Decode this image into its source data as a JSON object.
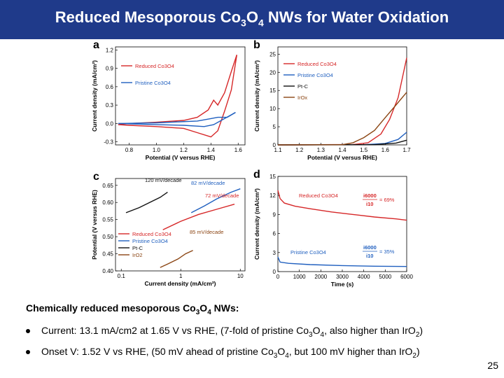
{
  "slide": {
    "title": {
      "pre": "Reduced Mesoporous Co",
      "sub1": "3",
      "mid": "O",
      "sub2": "4",
      "post": " NWs for Water Oxidation"
    },
    "caption": {
      "pre": "Chemically reduced mesoporous Co",
      "sub1": "3",
      "mid": "O",
      "sub2": "4",
      "post": " NWs:"
    },
    "bullets": [
      {
        "t1": "Current: 13.1 mA/cm2 at 1.65 V vs RHE, (7-fold of pristine Co",
        "s1": "3",
        "t2": "O",
        "s2": "4",
        "t3": ", also higher than IrO",
        "s3": "2",
        "t4": ")"
      },
      {
        "t1": "Onset V: 1.52 V vs RHE, (50 mV ahead of pristine Co",
        "s1": "3",
        "t2": "O",
        "s2": "4",
        "t3": ", but 100 mV higher than IrO",
        "s3": "2",
        "t4": ")"
      }
    ],
    "page_number": "25",
    "colors": {
      "title_bg": "#1f3a8a",
      "reduced": "#d62728",
      "pristine": "#1f5fbf",
      "ptc": "#111111",
      "irox": "#8b4513"
    }
  },
  "chart_data": [
    {
      "panel": "a",
      "type": "line",
      "xlabel": "Potential (V versus RHE)",
      "ylabel": "Current density (mA/cm²)",
      "xlim": [
        0.7,
        1.65
      ],
      "ylim": [
        -0.35,
        1.25
      ],
      "xticks": [
        "0.8",
        "1.0",
        "1.2",
        "1.4",
        "1.6"
      ],
      "yticks": [
        "-0.3",
        "0.0",
        "0.3",
        "0.6",
        "0.9",
        "1.2"
      ],
      "series": [
        {
          "name": "Reduced Co3O4",
          "color": "#d62728",
          "forward": [
            [
              0.72,
              -0.02
            ],
            [
              0.8,
              0.0
            ],
            [
              1.0,
              0.02
            ],
            [
              1.2,
              0.05
            ],
            [
              1.3,
              0.1
            ],
            [
              1.38,
              0.22
            ],
            [
              1.42,
              0.38
            ],
            [
              1.45,
              0.3
            ],
            [
              1.5,
              0.5
            ],
            [
              1.55,
              0.85
            ],
            [
              1.59,
              1.12
            ]
          ],
          "backward": [
            [
              1.59,
              1.12
            ],
            [
              1.55,
              0.55
            ],
            [
              1.5,
              0.2
            ],
            [
              1.45,
              -0.12
            ],
            [
              1.4,
              -0.22
            ],
            [
              1.3,
              -0.15
            ],
            [
              1.2,
              -0.08
            ],
            [
              1.0,
              -0.05
            ],
            [
              0.8,
              -0.03
            ],
            [
              0.72,
              -0.02
            ]
          ]
        },
        {
          "name": "Pristine Co3O4",
          "color": "#1f5fbf",
          "forward": [
            [
              0.72,
              0.0
            ],
            [
              1.0,
              0.01
            ],
            [
              1.3,
              0.04
            ],
            [
              1.4,
              0.08
            ],
            [
              1.45,
              0.1
            ],
            [
              1.52,
              0.1
            ],
            [
              1.58,
              0.18
            ]
          ],
          "backward": [
            [
              1.58,
              0.18
            ],
            [
              1.5,
              0.08
            ],
            [
              1.42,
              -0.02
            ],
            [
              1.35,
              -0.05
            ],
            [
              1.2,
              -0.03
            ],
            [
              1.0,
              -0.02
            ],
            [
              0.72,
              0.0
            ]
          ]
        }
      ]
    },
    {
      "panel": "b",
      "type": "line",
      "xlabel": "Potential (V versus RHE)",
      "ylabel": "Current density (mA/cm²)",
      "xlim": [
        1.1,
        1.7
      ],
      "ylim": [
        0,
        27
      ],
      "xticks": [
        "1.1",
        "1.2",
        "1.3",
        "1.4",
        "1.5",
        "1.6",
        "1.7"
      ],
      "yticks": [
        "0",
        "5",
        "10",
        "15",
        "20",
        "25"
      ],
      "series": [
        {
          "name": "Reduced Co3O4",
          "color": "#d62728",
          "points": [
            [
              1.1,
              0
            ],
            [
              1.45,
              0.1
            ],
            [
              1.52,
              0.6
            ],
            [
              1.58,
              3
            ],
            [
              1.62,
              7
            ],
            [
              1.66,
              13
            ],
            [
              1.7,
              24
            ]
          ]
        },
        {
          "name": "Pristine Co3O4",
          "color": "#1f5fbf",
          "points": [
            [
              1.1,
              0
            ],
            [
              1.5,
              0.05
            ],
            [
              1.6,
              0.4
            ],
            [
              1.66,
              1.5
            ],
            [
              1.7,
              3.5
            ]
          ]
        },
        {
          "name": "Pt-C",
          "color": "#111111",
          "points": [
            [
              1.1,
              0
            ],
            [
              1.55,
              0.05
            ],
            [
              1.65,
              0.5
            ],
            [
              1.7,
              1.3
            ]
          ]
        },
        {
          "name": "IrOx",
          "color": "#8b4513",
          "points": [
            [
              1.1,
              0
            ],
            [
              1.4,
              0.05
            ],
            [
              1.45,
              0.6
            ],
            [
              1.5,
              2
            ],
            [
              1.55,
              4
            ],
            [
              1.6,
              7.5
            ],
            [
              1.65,
              11
            ],
            [
              1.7,
              14.5
            ]
          ]
        }
      ]
    },
    {
      "panel": "c",
      "type": "line",
      "xlabel": "Current density (mA/cm²)",
      "ylabel": "Potential (V versus RHE)",
      "xscale": "log",
      "xlim": [
        0.08,
        12
      ],
      "ylim": [
        0.4,
        0.67
      ],
      "xticks": [
        "0.1",
        "1",
        "10"
      ],
      "yticks": [
        "0.40",
        "0.45",
        "0.50",
        "0.55",
        "0.60",
        "0.65"
      ],
      "annotations": [
        "120 mV/decade",
        "82 mV/decade",
        "72 mV/decade",
        "85 mV/decade"
      ],
      "series": [
        {
          "name": "Reduced Co3O4",
          "color": "#d62728",
          "points": [
            [
              0.5,
              0.52
            ],
            [
              1,
              0.545
            ],
            [
              2,
              0.565
            ],
            [
              4,
              0.58
            ],
            [
              8,
              0.595
            ]
          ]
        },
        {
          "name": "Pristine Co3O4",
          "color": "#1f5fbf",
          "points": [
            [
              1.5,
              0.57
            ],
            [
              2.5,
              0.59
            ],
            [
              4,
              0.61
            ],
            [
              7,
              0.63
            ],
            [
              10,
              0.64
            ]
          ]
        },
        {
          "name": "Pt-C",
          "color": "#111111",
          "points": [
            [
              0.12,
              0.57
            ],
            [
              0.2,
              0.585
            ],
            [
              0.3,
              0.6
            ],
            [
              0.45,
              0.615
            ],
            [
              0.6,
              0.63
            ]
          ]
        },
        {
          "name": "IrO2",
          "color": "#8b4513",
          "points": [
            [
              0.45,
              0.41
            ],
            [
              0.6,
              0.42
            ],
            [
              0.9,
              0.435
            ],
            [
              1.2,
              0.45
            ],
            [
              1.6,
              0.46
            ]
          ]
        }
      ]
    },
    {
      "panel": "d",
      "type": "line",
      "xlabel": "Time (s)",
      "ylabel": "Current density (mA/cm²)",
      "xlim": [
        0,
        6000
      ],
      "ylim": [
        0,
        15
      ],
      "xticks": [
        "0",
        "1000",
        "2000",
        "3000",
        "4000",
        "5000",
        "6000"
      ],
      "yticks": [
        "0",
        "3",
        "6",
        "9",
        "12",
        "15"
      ],
      "annotations": {
        "top": {
          "num": "i6000",
          "den": "i10",
          "value": "= 69%"
        },
        "bottom": {
          "num": "i6000",
          "den": "i10",
          "value": "= 35%"
        }
      },
      "series": [
        {
          "name": "Reduced Co3O4",
          "color": "#d62728",
          "points": [
            [
              0,
              12.8
            ],
            [
              100,
              11.5
            ],
            [
              300,
              10.8
            ],
            [
              800,
              10.3
            ],
            [
              1500,
              9.9
            ],
            [
              2500,
              9.4
            ],
            [
              3500,
              9.0
            ],
            [
              4500,
              8.6
            ],
            [
              5500,
              8.3
            ],
            [
              6000,
              8.1
            ]
          ]
        },
        {
          "name": "Pristine Co3O4",
          "color": "#1f5fbf",
          "points": [
            [
              0,
              2.3
            ],
            [
              100,
              1.5
            ],
            [
              500,
              1.3
            ],
            [
              1500,
              1.1
            ],
            [
              3000,
              0.95
            ],
            [
              4500,
              0.85
            ],
            [
              6000,
              0.8
            ]
          ]
        }
      ]
    }
  ]
}
